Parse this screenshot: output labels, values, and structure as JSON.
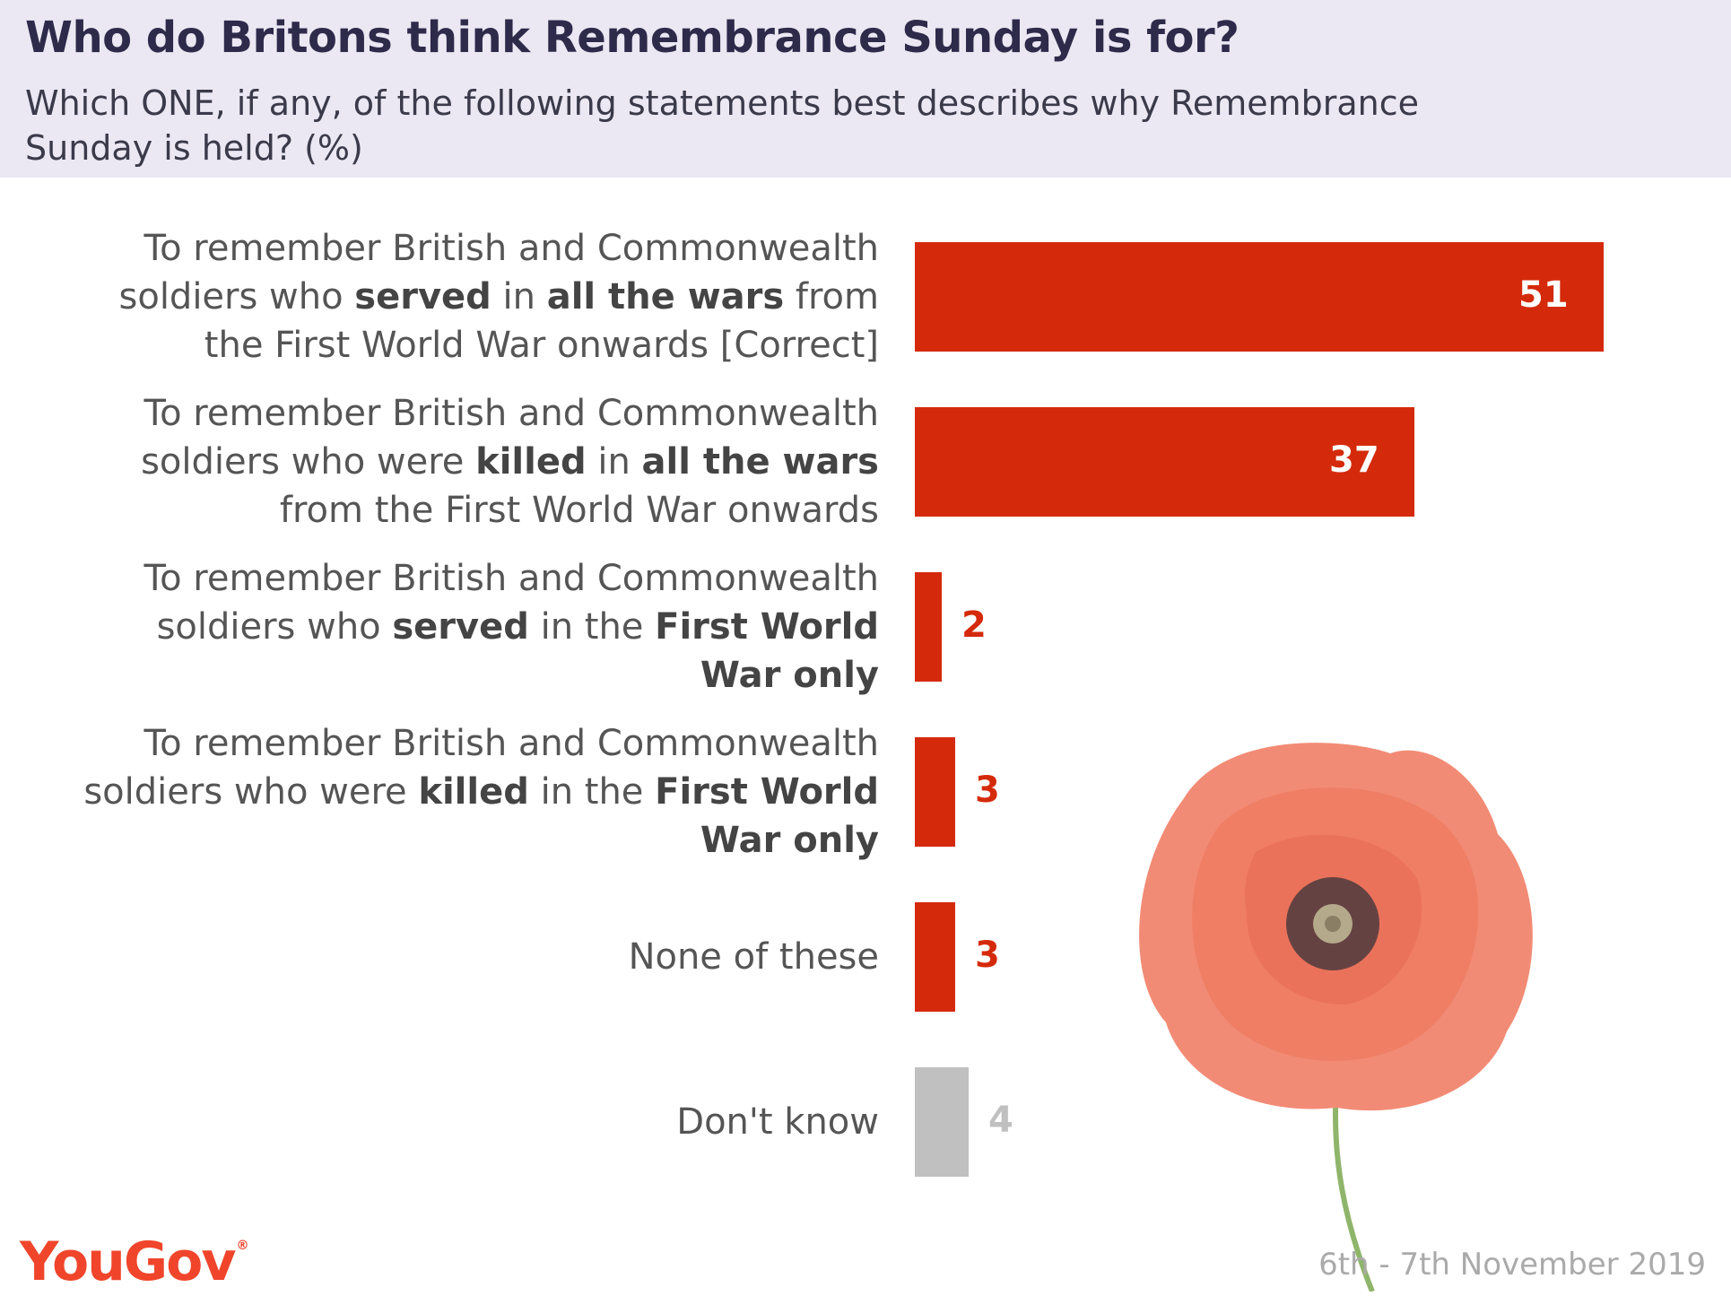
{
  "header": {
    "title": "Who do Britons think Remembrance Sunday is for?",
    "subtitle": "Which ONE, if any, of the following statements best describes why Remembrance Sunday is held? (%)"
  },
  "colors": {
    "header_bg": "#ebe8f3",
    "bar_main": "#d42a0b",
    "bar_dontknow": "#c0c0c0",
    "brand": "#f0452b"
  },
  "chart_data": {
    "type": "bar",
    "orientation": "horizontal",
    "title": "Who do Britons think Remembrance Sunday is for?",
    "subtitle": "Which ONE, if any, of the following statements best describes why Remembrance Sunday is held? (%)",
    "categories": [
      [
        {
          "t": "To remember British and Commonwealth soldiers who "
        },
        {
          "t": "served",
          "b": true
        },
        {
          "t": " in "
        },
        {
          "t": "all the wars",
          "b": true
        },
        {
          "t": " from the First World War onwards [Correct]"
        }
      ],
      [
        {
          "t": "To remember British and Commonwealth soldiers who were "
        },
        {
          "t": "killed",
          "b": true
        },
        {
          "t": " in "
        },
        {
          "t": "all the wars",
          "b": true
        },
        {
          "t": " from the First World War onwards"
        }
      ],
      [
        {
          "t": "To remember British and Commonwealth soldiers who "
        },
        {
          "t": "served",
          "b": true
        },
        {
          "t": " in the "
        },
        {
          "t": "First World War only",
          "b": true
        }
      ],
      [
        {
          "t": "To remember British and Commonwealth soldiers who were "
        },
        {
          "t": "killed",
          "b": true
        },
        {
          "t": " in the "
        },
        {
          "t": "First World War only",
          "b": true
        }
      ],
      [
        {
          "t": "None of these"
        }
      ],
      [
        {
          "t": "Don't know"
        }
      ]
    ],
    "values": [
      51,
      37,
      2,
      3,
      3,
      4
    ],
    "xlim": [
      0,
      51
    ],
    "grid": false,
    "legend": "none"
  },
  "footer": {
    "brand": "YouGov",
    "brand_mark": "®",
    "dates": "6th - 7th November 2019"
  }
}
